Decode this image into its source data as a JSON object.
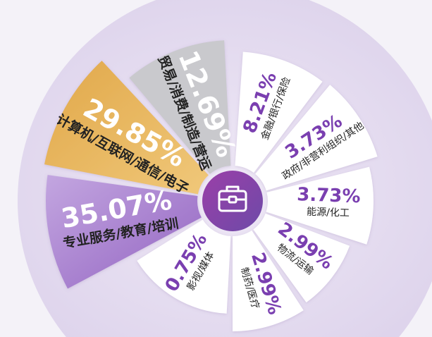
{
  "chart_data": {
    "type": "pie",
    "variant": "rose",
    "categories": [
      "金融/银行/保险",
      "政府/非营利组织/其他",
      "能源/化工",
      "物流/运输",
      "制药/医疗",
      "影视/媒体",
      "专业服务/教育/培训",
      "计算机/互联网/通信/电子",
      "贸易/消费/制造/营运"
    ],
    "values": [
      8.21,
      3.73,
      3.73,
      2.99,
      2.99,
      0.75,
      35.07,
      29.85,
      12.69
    ],
    "labels": [
      "8.21%",
      "3.73%",
      "3.73%",
      "2.99%",
      "2.99%",
      "0.75%",
      "35.07%",
      "29.85%",
      "12.69%"
    ],
    "colors": [
      "#ffffff",
      "#ffffff",
      "#ffffff",
      "#ffffff",
      "#ffffff",
      "#ffffff",
      "#a57fcc",
      "#e6b458",
      "#c9c9cd"
    ],
    "percent_color_light": "#7a3fb0",
    "center_icon": "briefcase-icon",
    "center_color": "#8b3fae"
  }
}
